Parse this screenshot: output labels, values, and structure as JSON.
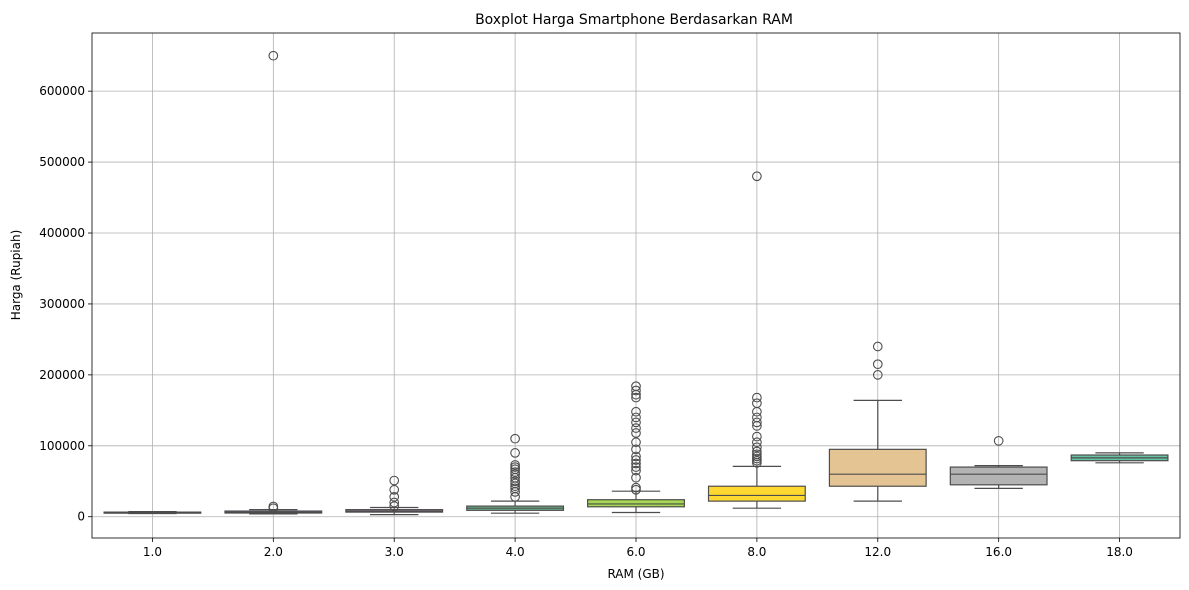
{
  "chart_data": {
    "type": "box",
    "title": "Boxplot Harga Smartphone Berdasarkan RAM",
    "xlabel": "RAM (GB)",
    "ylabel": "Harga (Rupiah)",
    "ylim": [
      -30000,
      682000
    ],
    "yticks": [
      0,
      100000,
      200000,
      300000,
      400000,
      500000,
      600000
    ],
    "grid": true,
    "legend": "none",
    "categories": [
      "1.0",
      "2.0",
      "3.0",
      "4.0",
      "6.0",
      "8.0",
      "12.0",
      "16.0",
      "18.0"
    ],
    "boxes": [
      {
        "category": "1.0",
        "color": "#e8827a",
        "whislo": 4500,
        "q1": 5000,
        "med": 5700,
        "q3": 6500,
        "whishi": 7200,
        "fliers": []
      },
      {
        "category": "2.0",
        "color": "#6f8fc8",
        "whislo": 4000,
        "q1": 5200,
        "med": 6300,
        "q3": 8000,
        "whishi": 10000,
        "fliers": [
          12000,
          14500,
          650000
        ]
      },
      {
        "category": "3.0",
        "color": "#c783b6",
        "whislo": 3000,
        "q1": 6500,
        "med": 8000,
        "q3": 10000,
        "whishi": 13000,
        "fliers": [
          15000,
          20000,
          28000,
          38000,
          51000
        ]
      },
      {
        "category": "4.0",
        "color": "#72b68c",
        "whislo": 5000,
        "q1": 9000,
        "med": 12000,
        "q3": 15000,
        "whishi": 22000,
        "fliers": [
          28000,
          35000,
          40000,
          43000,
          47000,
          50000,
          55000,
          60000,
          63000,
          67000,
          70000,
          73000,
          90000,
          110000
        ]
      },
      {
        "category": "6.0",
        "color": "#a6d854",
        "whislo": 6000,
        "q1": 14000,
        "med": 18000,
        "q3": 24000,
        "whishi": 36000,
        "fliers": [
          38000,
          41000,
          55000,
          65000,
          70000,
          75000,
          80000,
          85000,
          95000,
          105000,
          118000,
          125000,
          133000,
          140000,
          148000,
          168000,
          172000,
          178000,
          184000
        ]
      },
      {
        "category": "8.0",
        "color": "#ffd92f",
        "whislo": 12000,
        "q1": 22000,
        "med": 30000,
        "q3": 43000,
        "whishi": 71000,
        "fliers": [
          76000,
          79000,
          82000,
          85000,
          88000,
          92000,
          98000,
          105000,
          113000,
          128000,
          133000,
          140000,
          148000,
          160000,
          168000,
          480000
        ]
      },
      {
        "category": "12.0",
        "color": "#e5c494",
        "whislo": 22000,
        "q1": 43000,
        "med": 60000,
        "q3": 95000,
        "whishi": 164000,
        "fliers": [
          200000,
          215000,
          240000
        ]
      },
      {
        "category": "16.0",
        "color": "#b3b3b3",
        "whislo": 40000,
        "q1": 45000,
        "med": 60000,
        "q3": 70000,
        "whishi": 72000,
        "fliers": [
          107000
        ]
      },
      {
        "category": "18.0",
        "color": "#66c2a5",
        "whislo": 76000,
        "q1": 79000,
        "med": 83000,
        "q3": 87000,
        "whishi": 90000,
        "fliers": []
      }
    ]
  }
}
